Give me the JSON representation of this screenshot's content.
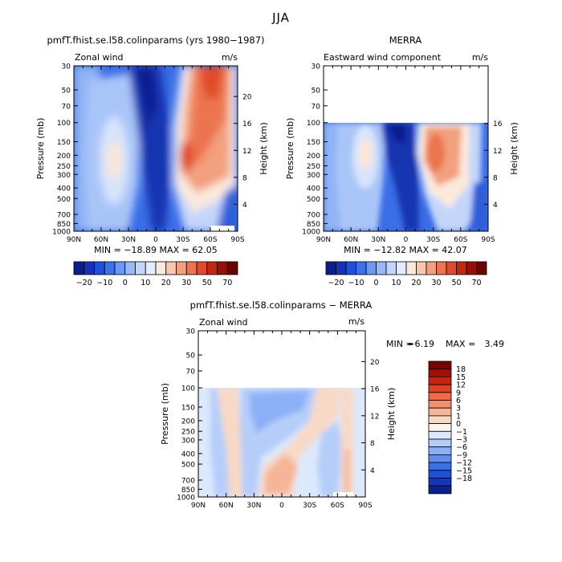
{
  "chart_data": {
    "title": "JJA",
    "type": "heatmap",
    "panels": [
      {
        "id": "model",
        "title": "pmfT.fhist.se.l58.colinparams (yrs 1980−1987)",
        "left_label": "Zonal wind",
        "units": "m/s",
        "ylabel": "Pressure (mb)",
        "ylabel_right": "Height (km)",
        "pressure_ticks": [
          "30",
          "50",
          "70",
          "100",
          "150",
          "200",
          "250",
          "300",
          "400",
          "500",
          "700",
          "850",
          "1000"
        ],
        "height_ticks": [
          "4",
          "8",
          "12",
          "16",
          "20"
        ],
        "lat_ticks": [
          "90N",
          "60N",
          "30N",
          "0",
          "30S",
          "60S",
          "90S"
        ],
        "stats": "MIN = −18.89   MAX =   62.05",
        "min": -18.89,
        "max": 62.05,
        "top_pressure": 30
      },
      {
        "id": "merra",
        "title": "MERRA",
        "left_label": "Eastward wind component",
        "units": "m/s",
        "ylabel": "Pressure (mb)",
        "ylabel_right": "Height (km)",
        "pressure_ticks": [
          "30",
          "50",
          "70",
          "100",
          "150",
          "200",
          "250",
          "300",
          "400",
          "500",
          "700",
          "850",
          "1000"
        ],
        "height_ticks": [
          "4",
          "8",
          "12",
          "16"
        ],
        "lat_ticks": [
          "90N",
          "60N",
          "30N",
          "0",
          "30S",
          "60S",
          "90S"
        ],
        "stats": "MIN = −12.82   MAX =   42.07",
        "min": -12.82,
        "max": 42.07,
        "top_pressure": 100
      },
      {
        "id": "diff",
        "title": "pmfT.fhist.se.l58.colinparams − MERRA",
        "left_label": "Zonal wind",
        "units": "m/s",
        "ylabel": "Pressure (mb)",
        "ylabel_right": "Height (km)",
        "pressure_ticks": [
          "30",
          "50",
          "70",
          "100",
          "150",
          "200",
          "250",
          "300",
          "400",
          "500",
          "700",
          "850",
          "1000"
        ],
        "height_ticks": [
          "4",
          "8",
          "12",
          "16",
          "20"
        ],
        "lat_ticks": [
          "90N",
          "60N",
          "30N",
          "0",
          "30S",
          "60S",
          "90S"
        ],
        "stats_min_label": "MIN =",
        "stats_min": "−6.19",
        "stats_max_label": "MAX =",
        "stats_max": "3.49",
        "min": -6.19,
        "max": 3.49,
        "top_pressure": 100
      }
    ],
    "colorbar_top": {
      "labels": [
        "−20",
        "−10",
        "0",
        "10",
        "20",
        "30",
        "50",
        "70"
      ],
      "levels": [
        -20,
        -15,
        -10,
        -5,
        0,
        5,
        10,
        15,
        20,
        25,
        30,
        40,
        50,
        60,
        70
      ],
      "colors": [
        "#0a1f8f",
        "#1533b8",
        "#1f4fdc",
        "#3b72ee",
        "#6a98f5",
        "#98b9f7",
        "#c3d6fa",
        "#e2ecfc",
        "#fbe9dc",
        "#f7c7ad",
        "#f2a07e",
        "#ec7550",
        "#e14b2c",
        "#c32712",
        "#961005",
        "#6b0400"
      ]
    },
    "colorbar_diff": {
      "labels": [
        "18",
        "15",
        "12",
        "9",
        "6",
        "3",
        "1",
        "0",
        "−1",
        "−3",
        "−6",
        "−9",
        "−12",
        "−15",
        "−18"
      ],
      "colors": [
        "#780400",
        "#a10e05",
        "#c42510",
        "#dd4222",
        "#ec6a44",
        "#f38f6a",
        "#f6b596",
        "#f8d9c6",
        "#fdf2ea",
        "#dce9fc",
        "#b5cef9",
        "#8cb0f6",
        "#5f8ff1",
        "#3a6fe8",
        "#2050d6",
        "#1636b4",
        "#0c218e"
      ]
    }
  }
}
